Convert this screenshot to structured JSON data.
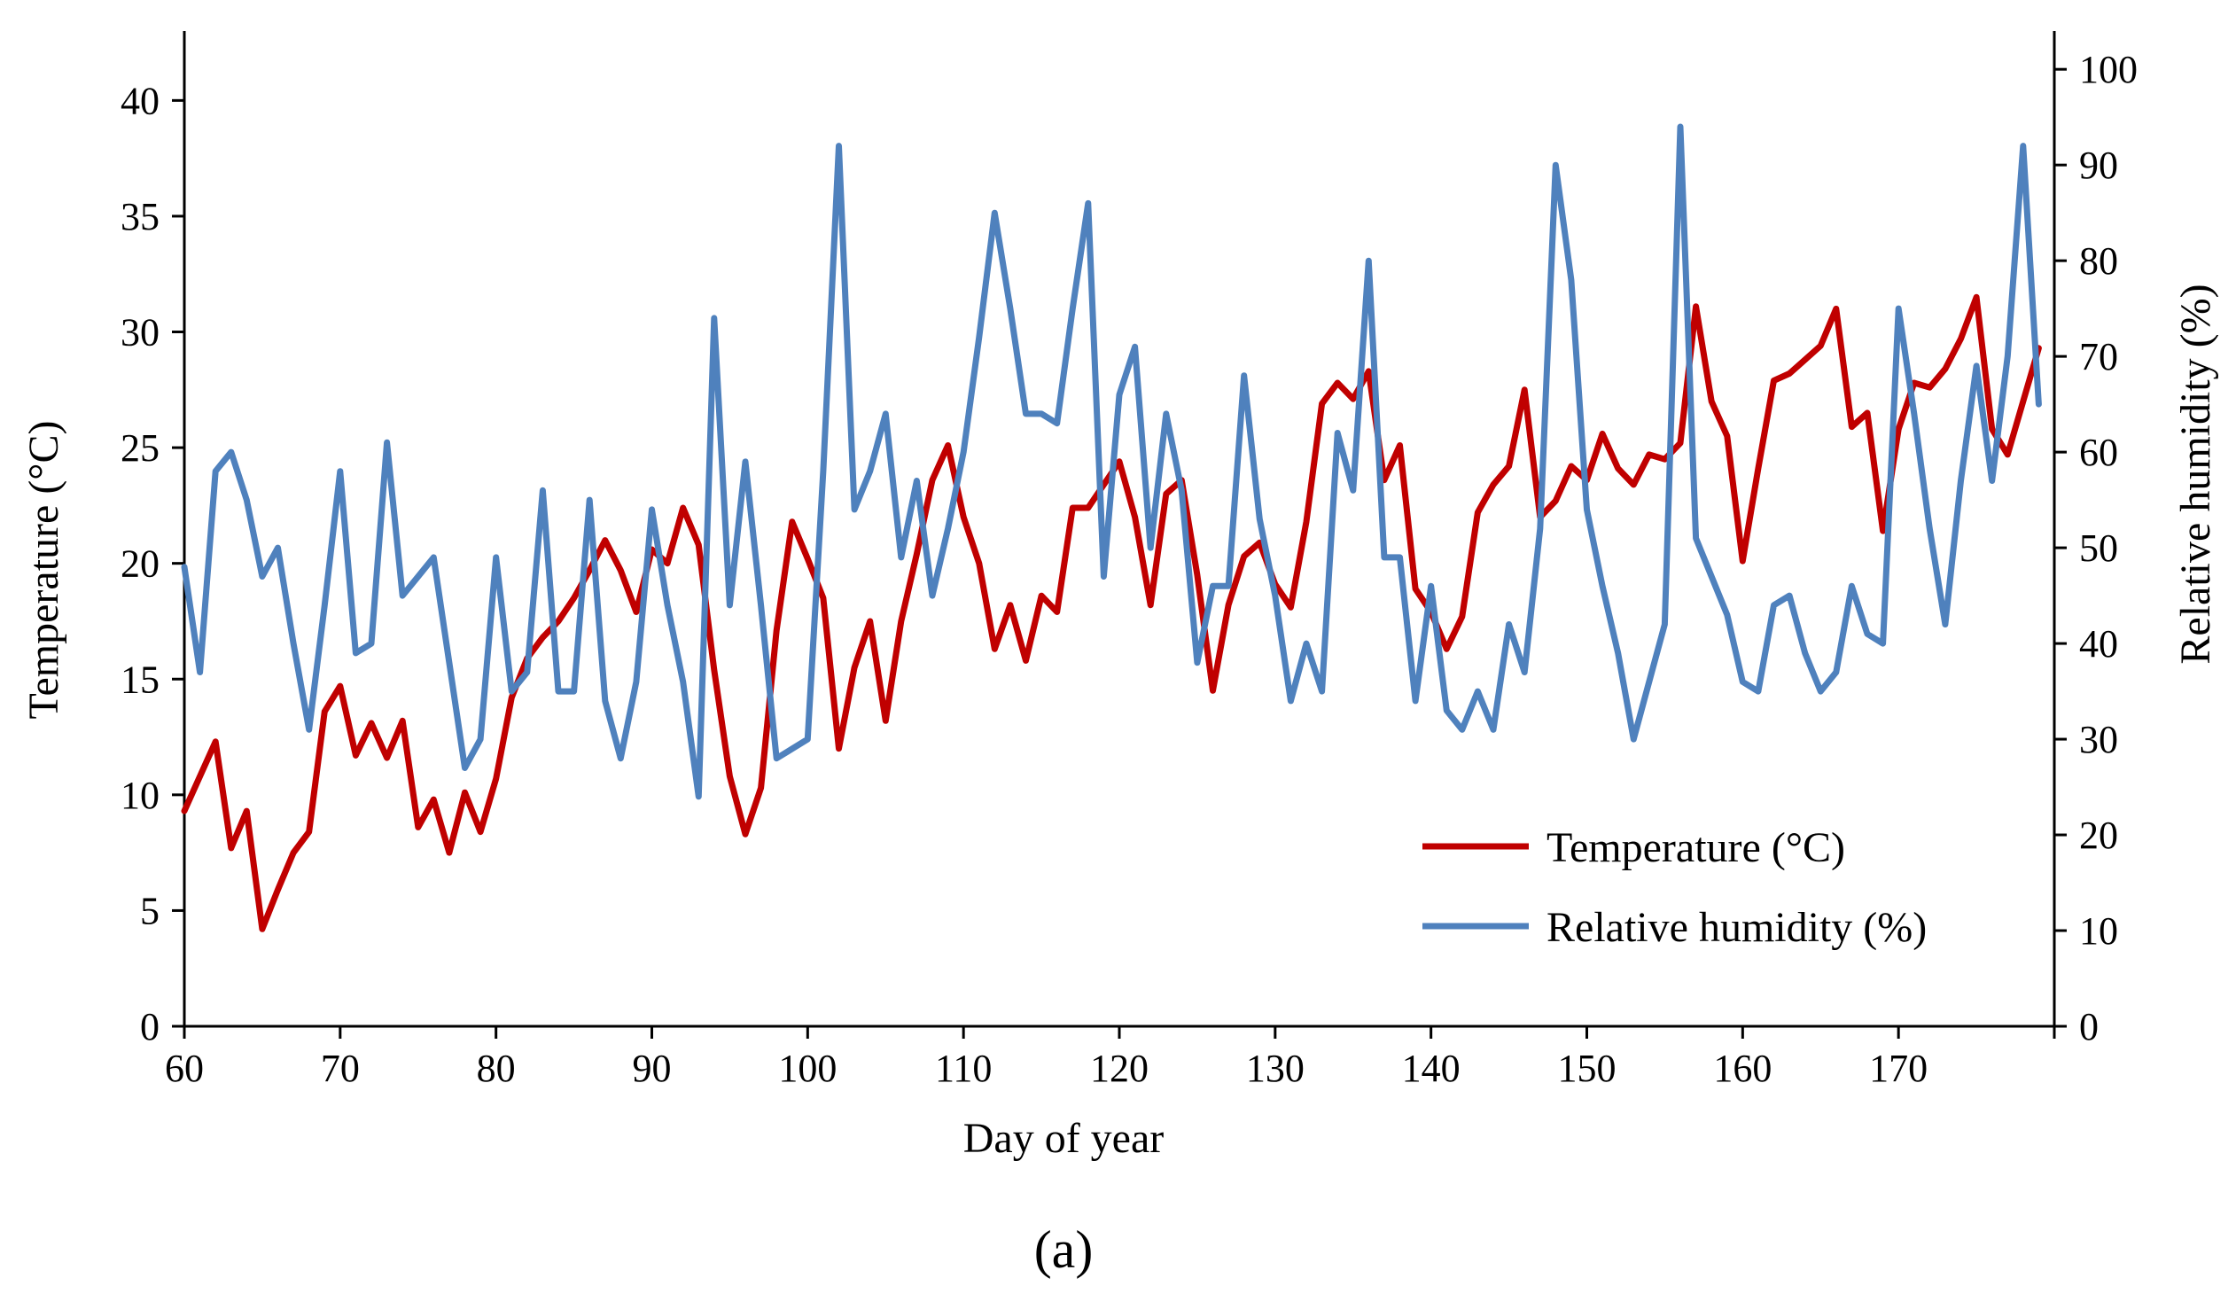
{
  "chart_data": {
    "type": "line",
    "xlabel": "Day of year",
    "ylabel": "Temperature (°C)",
    "y2label": "Relative humidity (%)",
    "caption": "(a)",
    "xlim": [
      60,
      180
    ],
    "ylim": [
      0,
      43
    ],
    "y2lim": [
      0,
      104
    ],
    "x_ticks": [
      60,
      70,
      80,
      90,
      100,
      110,
      120,
      130,
      140,
      150,
      160,
      170
    ],
    "y_ticks": [
      0,
      5,
      10,
      15,
      20,
      25,
      30,
      35,
      40
    ],
    "y2_ticks": [
      0,
      10,
      20,
      30,
      40,
      50,
      60,
      70,
      80,
      90,
      100
    ],
    "grid": false,
    "legend_position": "bottom-right",
    "x": [
      60,
      61,
      62,
      63,
      64,
      65,
      66,
      67,
      68,
      69,
      70,
      71,
      72,
      73,
      74,
      75,
      76,
      77,
      78,
      79,
      80,
      81,
      82,
      83,
      84,
      85,
      86,
      87,
      88,
      89,
      90,
      91,
      92,
      93,
      94,
      95,
      96,
      97,
      98,
      99,
      100,
      101,
      102,
      103,
      104,
      105,
      106,
      107,
      108,
      109,
      110,
      111,
      112,
      113,
      114,
      115,
      116,
      117,
      118,
      119,
      120,
      121,
      122,
      123,
      124,
      125,
      126,
      127,
      128,
      129,
      130,
      131,
      132,
      133,
      134,
      135,
      136,
      137,
      138,
      139,
      140,
      141,
      142,
      143,
      144,
      145,
      146,
      147,
      148,
      149,
      150,
      151,
      152,
      153,
      154,
      155,
      156,
      157,
      158,
      159,
      160,
      161,
      162,
      163,
      164,
      165,
      166,
      167,
      168,
      169,
      170,
      171,
      172,
      173,
      174,
      175,
      176,
      177,
      178,
      179
    ],
    "series": [
      {
        "name": "Temperature (°C)",
        "axis": "left",
        "color": "#c00000",
        "values": [
          9.3,
          10.8,
          12.3,
          7.7,
          9.3,
          4.2,
          5.9,
          7.5,
          8.4,
          13.6,
          14.7,
          11.7,
          13.1,
          11.6,
          13.2,
          8.6,
          9.8,
          7.5,
          10.1,
          8.4,
          10.7,
          14.2,
          15.9,
          16.8,
          17.5,
          18.5,
          19.7,
          21.0,
          19.7,
          17.9,
          20.6,
          20.0,
          22.4,
          20.8,
          15.4,
          10.8,
          8.3,
          10.3,
          17.1,
          21.8,
          20.2,
          18.5,
          12.0,
          15.5,
          17.5,
          13.2,
          17.5,
          20.4,
          23.6,
          25.1,
          22.0,
          20.0,
          16.3,
          18.2,
          15.8,
          18.6,
          17.9,
          22.4,
          22.4,
          23.4,
          24.4,
          22.0,
          18.2,
          23.0,
          23.6,
          19.5,
          14.5,
          18.2,
          20.3,
          20.9,
          19.1,
          18.1,
          21.8,
          26.9,
          27.8,
          27.1,
          28.3,
          23.6,
          25.1,
          18.9,
          17.9,
          16.3,
          17.7,
          22.2,
          23.4,
          24.2,
          27.5,
          22.0,
          22.7,
          24.2,
          23.6,
          25.6,
          24.1,
          23.4,
          24.7,
          24.5,
          25.2,
          31.1,
          27.0,
          25.5,
          20.1,
          24.1,
          27.9,
          28.2,
          28.8,
          29.4,
          31.0,
          25.9,
          26.5,
          21.4,
          25.8,
          27.8,
          27.6,
          28.4,
          29.7,
          31.5,
          25.8,
          24.7,
          27.0,
          29.3
        ]
      },
      {
        "name": "Relative humidity (%)",
        "axis": "right",
        "color": "#4f81bd",
        "values": [
          48,
          37,
          58,
          60,
          55,
          47,
          50,
          40,
          31,
          44,
          58,
          39,
          40,
          61,
          45,
          47,
          49,
          38,
          27,
          30,
          49,
          35,
          37,
          56,
          35,
          35,
          55,
          34,
          28,
          36,
          54,
          44,
          36,
          24,
          74,
          44,
          59,
          44,
          28,
          29,
          30,
          58,
          92,
          54,
          58,
          64,
          49,
          57,
          45,
          52,
          60,
          72,
          85,
          75,
          64,
          64,
          63,
          75,
          86,
          47,
          66,
          71,
          50,
          64,
          56,
          38,
          46,
          46,
          68,
          53,
          45,
          34,
          40,
          35,
          62,
          56,
          80,
          49,
          49,
          34,
          46,
          33,
          31,
          35,
          31,
          42,
          37,
          52,
          90,
          78,
          54,
          46,
          39,
          30,
          36,
          42,
          94,
          51,
          47,
          43,
          36,
          35,
          44,
          45,
          39,
          35,
          37,
          46,
          41,
          40,
          75,
          64,
          52,
          42,
          57,
          69,
          57,
          70,
          92,
          65
        ]
      }
    ]
  }
}
